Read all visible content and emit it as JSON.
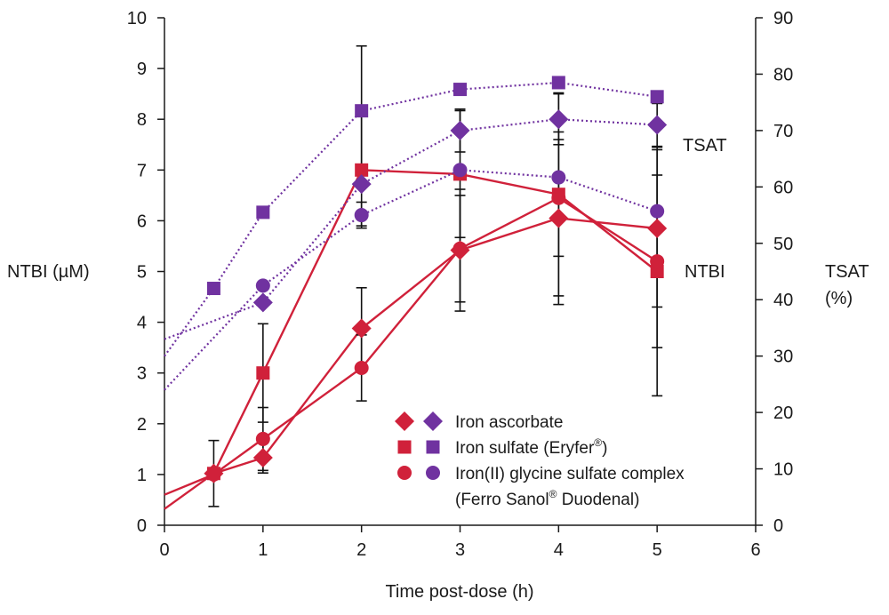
{
  "chart_data": {
    "type": "line",
    "xlabel": "Time post-dose (h)",
    "ylabel_left": "NTBI (µM)",
    "ylabel_right_line1": "TSAT",
    "ylabel_right_line2": "(%)",
    "xlim": [
      0,
      6
    ],
    "ylim_left": [
      0,
      10
    ],
    "ylim_right": [
      0,
      90
    ],
    "x_ticks": [
      0,
      1,
      2,
      3,
      4,
      5,
      6
    ],
    "y_left_ticks": [
      0,
      1,
      2,
      3,
      4,
      5,
      6,
      7,
      8,
      9,
      10
    ],
    "y_right_ticks": [
      0,
      10,
      20,
      30,
      40,
      50,
      60,
      70,
      80,
      90
    ],
    "label_tsat": "TSAT",
    "label_ntbi": "NTBI",
    "colors": {
      "ntbi": "#d0213a",
      "tsat": "#7032a0",
      "error": "#111111"
    },
    "series": [
      {
        "name": "Iron ascorbate",
        "metric": "NTBI",
        "axis": "left",
        "marker": "diamond",
        "x": [
          0,
          0.5,
          1,
          2,
          3,
          4,
          5
        ],
        "y": [
          0.32,
          1.02,
          1.33,
          3.88,
          5.42,
          6.05,
          5.85
        ],
        "err": [
          null,
          0.65,
          0.3,
          0.8,
          1.2,
          1.7,
          1.55
        ]
      },
      {
        "name": "Iron sulfate (Eryfer®)",
        "metric": "NTBI",
        "axis": "left",
        "marker": "square",
        "x": [
          0.5,
          1,
          2,
          3,
          4,
          5
        ],
        "y": [
          1.02,
          3.0,
          7.0,
          6.92,
          6.52,
          5.0
        ],
        "err": [
          null,
          0.97,
          1.1,
          1.25,
          2.0,
          2.45
        ]
      },
      {
        "name": "Iron(II) glycine sulfate complex (Ferro Sanol® Duodenal)",
        "metric": "NTBI",
        "axis": "left",
        "marker": "circle",
        "x": [
          0,
          0.5,
          1,
          2,
          3,
          4,
          5
        ],
        "y": [
          0.6,
          1.0,
          1.7,
          3.1,
          5.45,
          6.45,
          5.2
        ],
        "err": [
          null,
          null,
          0.62,
          0.65,
          1.05,
          1.15,
          1.7
        ]
      },
      {
        "name": "Iron ascorbate",
        "metric": "TSAT",
        "axis": "right",
        "marker": "diamond",
        "x": [
          0,
          1,
          2,
          3,
          4,
          5
        ],
        "y": [
          33,
          39.5,
          60.5,
          70,
          72,
          71
        ],
        "err": [
          null,
          null,
          null,
          3.8,
          4.5,
          3.8
        ]
      },
      {
        "name": "Iron sulfate (Eryfer®)",
        "metric": "TSAT",
        "axis": "right",
        "marker": "square",
        "x": [
          0,
          0.5,
          1,
          2,
          3,
          4,
          5
        ],
        "y": [
          30,
          42,
          55.5,
          73.5,
          77.3,
          78.5,
          76
        ],
        "err": [
          null,
          null,
          null,
          11.5,
          null,
          null,
          null
        ]
      },
      {
        "name": "Iron(II) glycine sulfate complex (Ferro Sanol® Duodenal)",
        "metric": "TSAT",
        "axis": "right",
        "marker": "circle",
        "x": [
          0,
          1,
          2,
          3,
          4,
          5
        ],
        "y": [
          24,
          42.5,
          55,
          63,
          61.7,
          55.7
        ],
        "err": [
          null,
          null,
          2.3,
          null,
          null,
          null
        ]
      }
    ],
    "legend": {
      "position": "bottom-right",
      "entries": [
        {
          "text": "Iron ascorbate",
          "marker": "diamond"
        },
        {
          "text": "Iron sulfate (Eryfer",
          "sup": "®",
          "tail": ")",
          "marker": "square"
        },
        {
          "text": "Iron(II) glycine sulfate complex",
          "marker": "circle"
        },
        {
          "text": "(Ferro Sanol",
          "sup": "®",
          "tail": " Duodenal)",
          "marker": null
        }
      ]
    }
  }
}
